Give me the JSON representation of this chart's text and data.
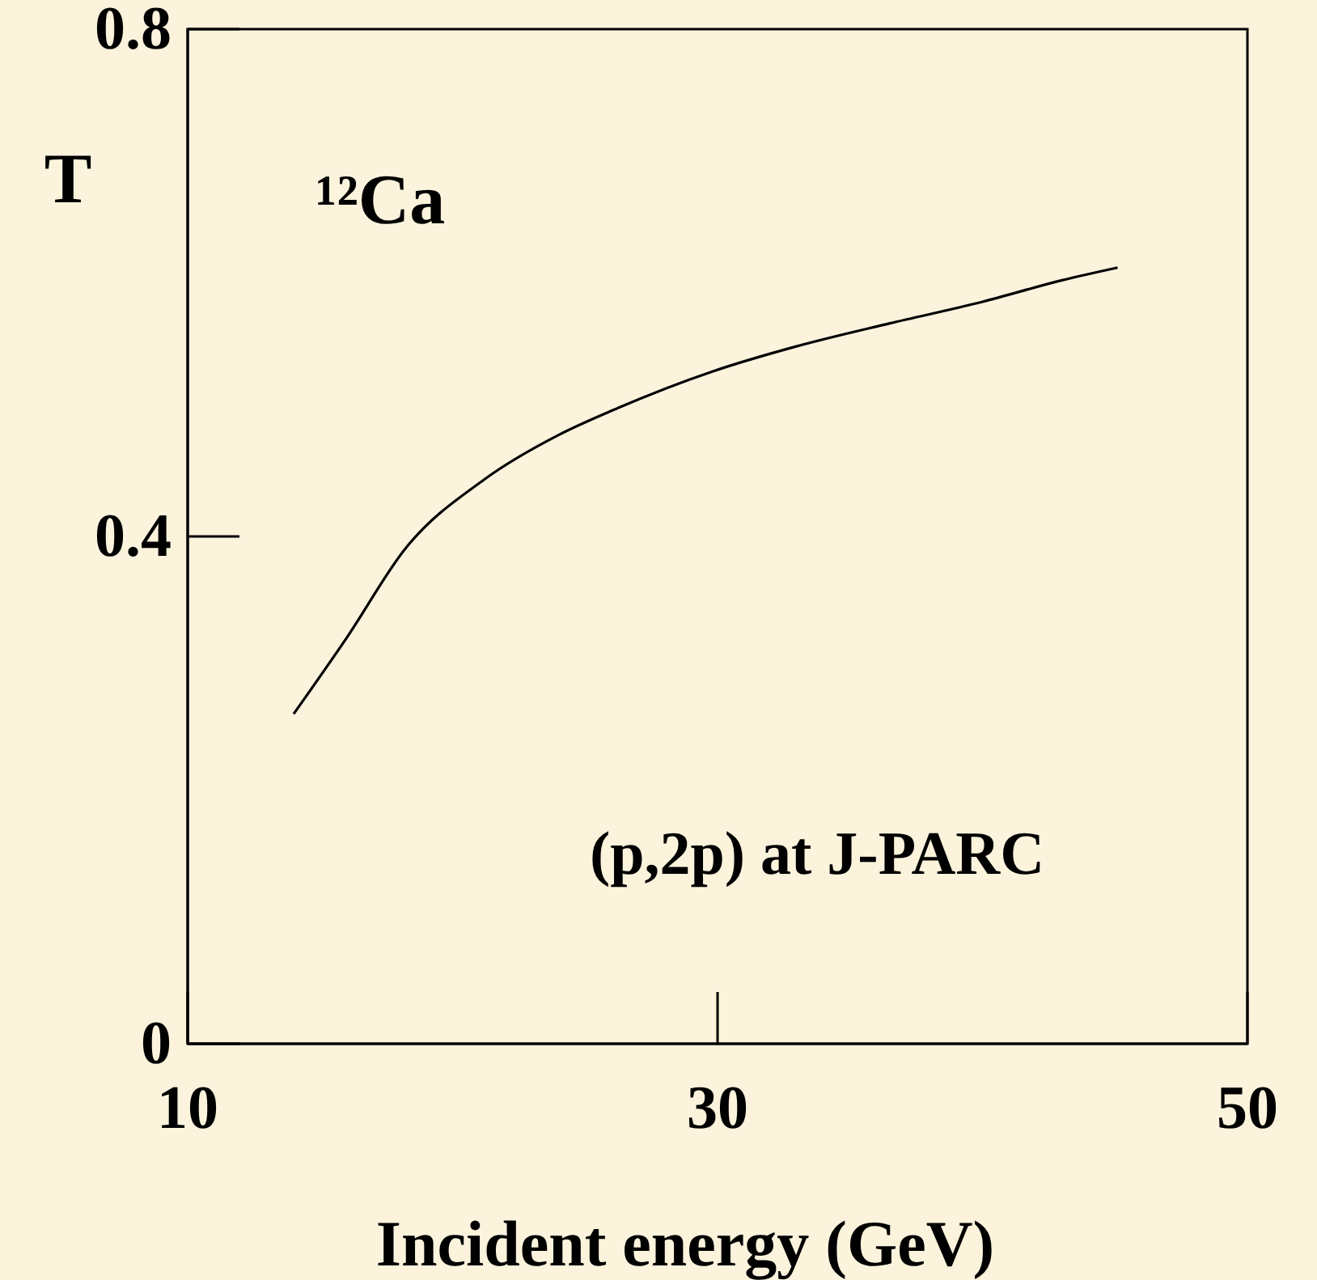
{
  "chart_data": {
    "type": "line",
    "xlabel": "Incident energy (GeV)",
    "ylabel": "T",
    "annotations": [
      "¹²Ca",
      "(p,2p) at J-PARC"
    ],
    "x": [
      14,
      16,
      18.2,
      21.2,
      24,
      26.1,
      29.8,
      33,
      36.5,
      40,
      43,
      45.1
    ],
    "series": [
      {
        "color": "#000000",
        "values": [
          0.26,
          0.32,
          0.39,
          0.445,
          0.48,
          0.5,
          0.53,
          0.55,
          0.568,
          0.585,
          0.602,
          0.612
        ]
      }
    ],
    "xlim": [
      10,
      50
    ],
    "ylim": [
      0,
      0.8
    ],
    "xticks": [
      10,
      30,
      50
    ],
    "yticks": [
      0,
      0.4,
      0.8
    ],
    "grid": false,
    "marker": "none",
    "line_style": "solid"
  }
}
